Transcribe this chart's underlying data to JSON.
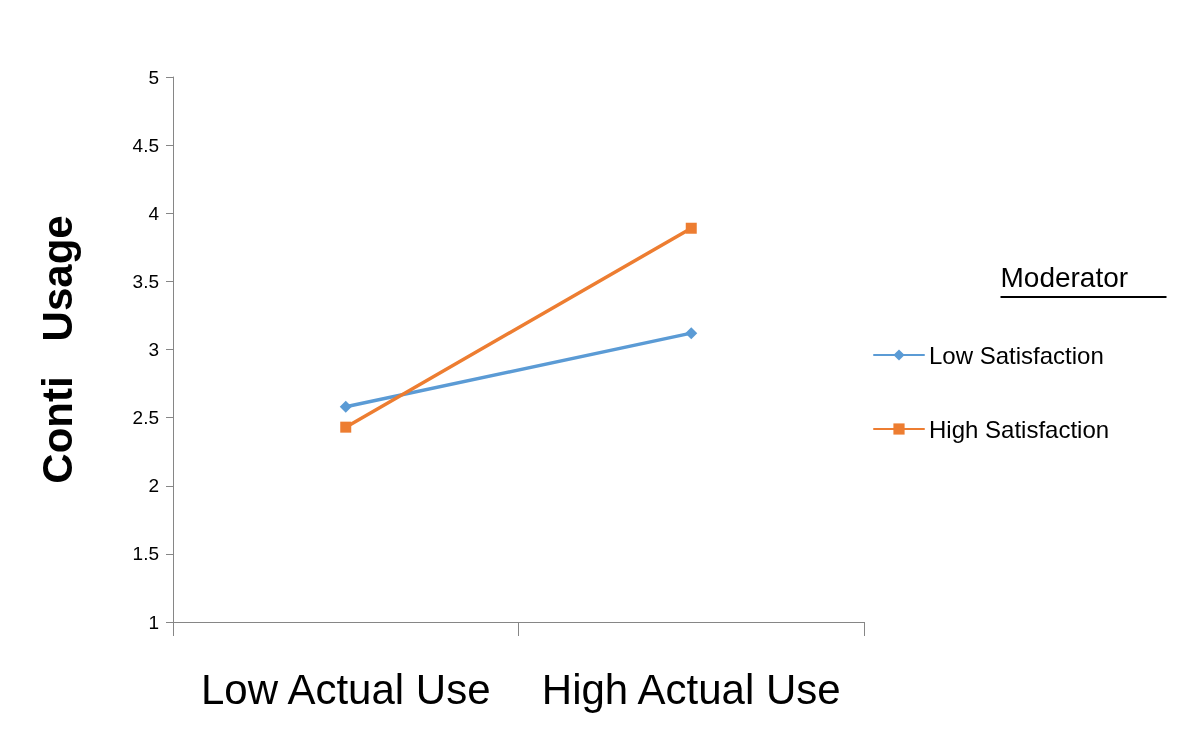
{
  "chart_data": {
    "type": "line",
    "ylabel": "Conti   Usage",
    "legend_title": "Moderator",
    "categories": [
      "Low Actual Use",
      "High Actual Use"
    ],
    "series": [
      {
        "name": "Low Satisfaction",
        "color": "#5b9bd5",
        "marker": "diamond",
        "values": [
          2.58,
          3.12
        ]
      },
      {
        "name": "High Satisfaction",
        "color": "#ed7d31",
        "marker": "square",
        "values": [
          2.43,
          3.89
        ]
      }
    ],
    "ylim": [
      1,
      5
    ],
    "yticks": [
      1,
      1.5,
      2,
      2.5,
      3,
      3.5,
      4,
      4.5,
      5
    ],
    "grid": false,
    "legend": "right"
  }
}
